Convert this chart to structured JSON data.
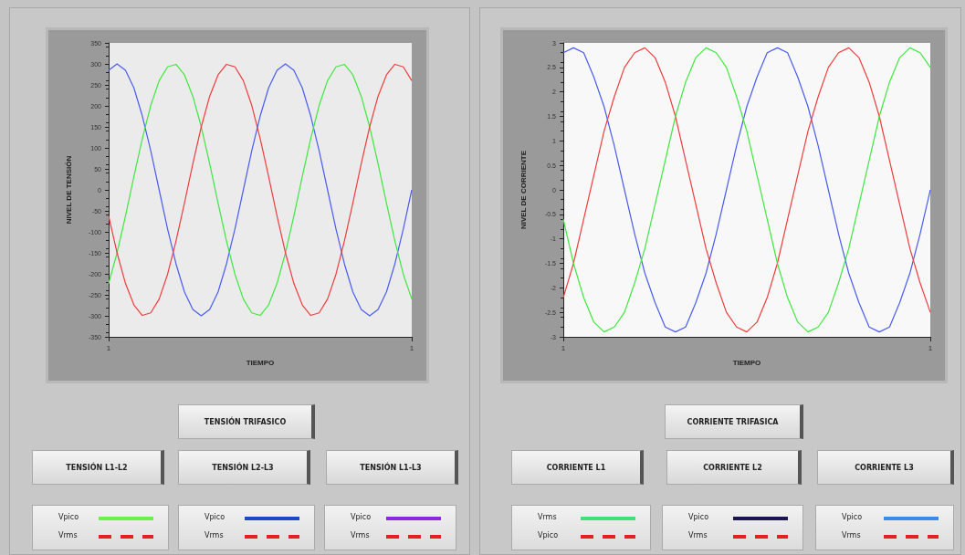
{
  "chart_data": [
    {
      "type": "line",
      "xlabel": "TIEMPO",
      "ylabel": "NIVEL DE TENSIÓN",
      "marker": "none",
      "categories": [
        "1",
        null,
        null,
        null,
        null,
        null,
        null,
        null,
        null,
        null,
        null,
        null,
        null,
        null,
        null,
        null,
        null,
        null,
        null,
        null,
        null,
        null,
        null,
        null,
        null,
        null,
        null,
        null,
        null,
        null,
        null,
        null,
        null,
        null,
        null,
        null,
        "1"
      ],
      "ylim": [
        -350,
        350
      ],
      "yticks": [
        -350,
        -300,
        -250,
        -200,
        -150,
        -100,
        -50,
        0,
        50,
        100,
        150,
        200,
        250,
        300,
        350
      ],
      "series": [
        {
          "color": "#4a5cf0",
          "values": [
            285,
            300,
            285,
            243,
            176,
            93,
            0,
            -93,
            -176,
            -243,
            -285,
            -300,
            -285,
            -243,
            -176,
            -93,
            0,
            93,
            176,
            243,
            285,
            300,
            285,
            243,
            176,
            93,
            0,
            -93,
            -176,
            -243,
            -285,
            -300,
            -285,
            -243,
            -176,
            -93,
            0
          ]
        },
        {
          "color": "#3ee83e",
          "values": [
            -223,
            -150,
            -62,
            32,
            122,
            201,
            260,
            293,
            299,
            274,
            223,
            150,
            62,
            -32,
            -122,
            -201,
            -260,
            -293,
            -299,
            -274,
            -223,
            -150,
            -62,
            32,
            122,
            201,
            260,
            293,
            299,
            274,
            223,
            150,
            62,
            -32,
            -122,
            -201,
            -260
          ]
        },
        {
          "color": "#f03c3c",
          "values": [
            -62,
            -150,
            -223,
            -274,
            -299,
            -293,
            -260,
            -201,
            -122,
            -32,
            62,
            150,
            223,
            274,
            299,
            293,
            260,
            201,
            122,
            32,
            -62,
            -150,
            -223,
            -274,
            -299,
            -293,
            -260,
            -201,
            -122,
            -32,
            62,
            150,
            223,
            274,
            299,
            293,
            260
          ]
        }
      ],
      "annotations": [
        "TENSIÓN TRIFASICO",
        "TENSIÓN L1-L2",
        "TENSIÓN L2-L3",
        "TENSIÓN L1-L3",
        "Vpico",
        "Vrms",
        "Vpico",
        "Vrms",
        "Vpico",
        "Vrms"
      ]
    },
    {
      "type": "line",
      "xlabel": "TIEMPO",
      "ylabel": "NIVEL DE CORRIENTE",
      "marker": "none",
      "categories": [
        "1",
        null,
        null,
        null,
        null,
        null,
        null,
        null,
        null,
        null,
        null,
        null,
        null,
        null,
        null,
        null,
        null,
        null,
        null,
        null,
        null,
        null,
        null,
        null,
        null,
        null,
        null,
        null,
        null,
        null,
        null,
        null,
        null,
        null,
        null,
        null,
        "1"
      ],
      "ylim": [
        -3,
        3
      ],
      "yticks": [
        -3,
        -2.5,
        -2,
        -1.5,
        -1,
        -0.5,
        0,
        0.5,
        1,
        1.5,
        2,
        2.5,
        3
      ],
      "series": [
        {
          "color": "#4a5cf0",
          "values": [
            2.8,
            2.9,
            2.8,
            2.3,
            1.7,
            0.9,
            0,
            -0.9,
            -1.7,
            -2.3,
            -2.8,
            -2.9,
            -2.8,
            -2.3,
            -1.7,
            -0.9,
            0,
            0.9,
            1.7,
            2.3,
            2.8,
            2.9,
            2.8,
            2.3,
            1.7,
            0.9,
            0,
            -0.9,
            -1.7,
            -2.3,
            -2.8,
            -2.9,
            -2.8,
            -2.3,
            -1.7,
            -0.9,
            0
          ]
        },
        {
          "color": "#f03c3c",
          "values": [
            -2.2,
            -1.5,
            -0.6,
            0.3,
            1.2,
            1.9,
            2.5,
            2.8,
            2.9,
            2.7,
            2.2,
            1.5,
            0.6,
            -0.3,
            -1.2,
            -1.9,
            -2.5,
            -2.8,
            -2.9,
            -2.7,
            -2.2,
            -1.5,
            -0.6,
            0.3,
            1.2,
            1.9,
            2.5,
            2.8,
            2.9,
            2.7,
            2.2,
            1.5,
            0.6,
            -0.3,
            -1.2,
            -1.9,
            -2.5
          ]
        },
        {
          "color": "#3ee83e",
          "values": [
            -0.6,
            -1.5,
            -2.2,
            -2.7,
            -2.9,
            -2.8,
            -2.5,
            -1.9,
            -1.2,
            -0.3,
            0.6,
            1.5,
            2.2,
            2.7,
            2.9,
            2.8,
            2.5,
            1.9,
            1.2,
            0.3,
            -0.6,
            -1.5,
            -2.2,
            -2.7,
            -2.9,
            -2.8,
            -2.5,
            -1.9,
            -1.2,
            -0.3,
            0.6,
            1.5,
            2.2,
            2.7,
            2.9,
            2.8,
            2.5
          ]
        }
      ],
      "annotations": [
        "CORRIENTE TRIFASICA",
        "CORRIENTE L1",
        "CORRIENTE L2",
        "CORRIENTE L3",
        "Vrms",
        "Vpico",
        "Vpico",
        "Vrms",
        "Vpico",
        "Vrms"
      ]
    }
  ]
}
